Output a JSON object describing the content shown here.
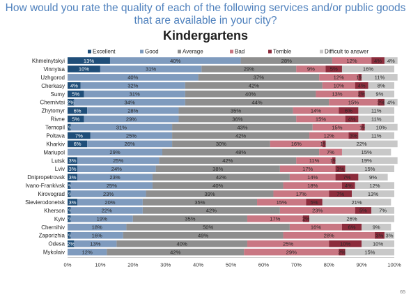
{
  "question": "How would you rate the quality of each of the following services and/or public goods that are available in your city?",
  "page_number": "65",
  "colors": {
    "excellent": "#1f4e79",
    "good": "#7f9bbe",
    "average": "#8e8e8e",
    "bad": "#c97783",
    "terrible": "#8c2c3c",
    "difficult": "#c8c8c8"
  },
  "chart_data": {
    "type": "bar",
    "orientation": "horizontal",
    "stacked": true,
    "title": "Kindergartens",
    "xlim": [
      0,
      100
    ],
    "x_ticks": [
      "0%",
      "10%",
      "20%",
      "30%",
      "40%",
      "50%",
      "60%",
      "70%",
      "80%",
      "90%",
      "100%"
    ],
    "legend_position": "top",
    "grid": false,
    "categories": [
      "Khmelnytskyi",
      "Vinnytsa",
      "Uzhgorod",
      "Cherkasy",
      "Sumy",
      "Chernivtsi",
      "Zhytomyr",
      "Rivne",
      "Ternopil",
      "Poltava",
      "Kharkiv",
      "Mariupol",
      "Lutsk",
      "Lviv",
      "Dnipropetrovsk",
      "Ivano-Frankivsk",
      "Kirovograd",
      "Sievierodonetsk",
      "Kherson",
      "Kyiv",
      "Chernihiv",
      "Zaporizhia",
      "Odesa",
      "Mykolaiv"
    ],
    "series": [
      {
        "name": "Excellent",
        "color_key": "excellent",
        "values": [
          13,
          10,
          0,
          4,
          5,
          2,
          6,
          5,
          1,
          7,
          6,
          0,
          3,
          3,
          3,
          1,
          1,
          3,
          1,
          1,
          0,
          1,
          2,
          0
        ]
      },
      {
        "name": "Good",
        "color_key": "good",
        "values": [
          40,
          31,
          40,
          32,
          31,
          34,
          28,
          29,
          31,
          25,
          26,
          29,
          25,
          24,
          23,
          25,
          23,
          20,
          22,
          19,
          18,
          16,
          13,
          12
        ]
      },
      {
        "name": "Average",
        "color_key": "average",
        "values": [
          28,
          29,
          37,
          42,
          40,
          44,
          35,
          36,
          43,
          42,
          30,
          48,
          42,
          38,
          42,
          40,
          39,
          35,
          42,
          35,
          50,
          49,
          40,
          42
        ]
      },
      {
        "name": "Bad",
        "color_key": "bad",
        "values": [
          12,
          9,
          12,
          10,
          13,
          15,
          14,
          15,
          15,
          12,
          16,
          7,
          11,
          17,
          14,
          18,
          17,
          15,
          23,
          17,
          16,
          28,
          25,
          29
        ]
      },
      {
        "name": "Terrible",
        "color_key": "terrible",
        "values": [
          4,
          5,
          1,
          4,
          2,
          2,
          6,
          4,
          1,
          3,
          1,
          0,
          1,
          3,
          7,
          4,
          7,
          5,
          5,
          2,
          6,
          3,
          10,
          2
        ]
      },
      {
        "name": "Difficult to answer",
        "color_key": "difficult",
        "values": [
          4,
          16,
          11,
          8,
          9,
          4,
          11,
          11,
          10,
          11,
          22,
          15,
          19,
          15,
          9,
          12,
          13,
          21,
          7,
          26,
          9,
          3,
          10,
          15
        ]
      }
    ]
  }
}
